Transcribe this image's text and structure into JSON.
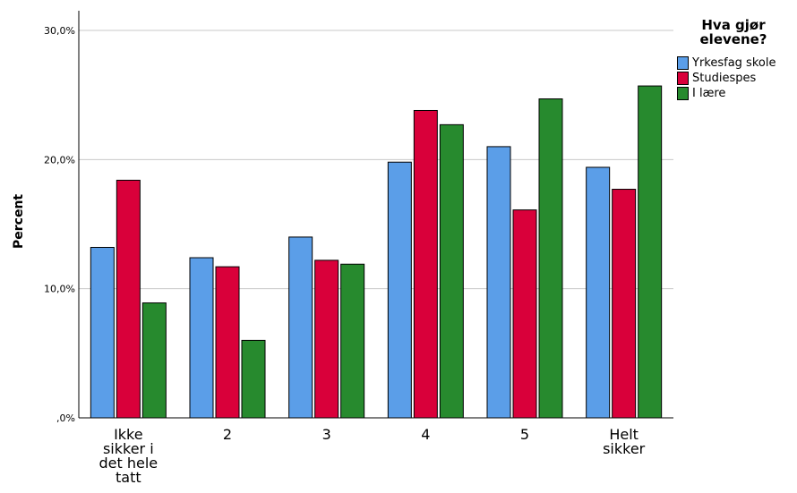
{
  "chart_data": {
    "type": "bar",
    "categories": [
      "Ikke sikker i det hele tatt",
      "2",
      "3",
      "4",
      "5",
      "Helt sikker"
    ],
    "category_label_lines": [
      [
        "Ikke",
        "sikker i",
        "det hele",
        "tatt"
      ],
      [
        "2"
      ],
      [
        "3"
      ],
      [
        "4"
      ],
      [
        "5"
      ],
      [
        "Helt",
        "sikker"
      ]
    ],
    "series": [
      {
        "name": "Yrkesfag skole",
        "color": "#5b9ee8",
        "values": [
          13.2,
          12.4,
          14.0,
          19.8,
          21.0,
          19.4
        ]
      },
      {
        "name": "Studiespes",
        "color": "#d9003a",
        "values": [
          18.4,
          11.7,
          12.2,
          23.8,
          16.1,
          17.7
        ]
      },
      {
        "name": "I lære",
        "color": "#278a2e",
        "values": [
          8.9,
          6.0,
          11.9,
          22.7,
          24.7,
          25.7
        ]
      }
    ],
    "title": "",
    "xlabel": "",
    "ylabel": "Percent",
    "ylim": [
      0,
      30
    ],
    "yticks": [
      0,
      10,
      20,
      30
    ],
    "ytick_labels": [
      ",0%",
      "10,0%",
      "20,0%",
      "30,0%"
    ],
    "grid": true,
    "legend_title": "Hva gjør elevene?",
    "legend_position": "top-right"
  }
}
